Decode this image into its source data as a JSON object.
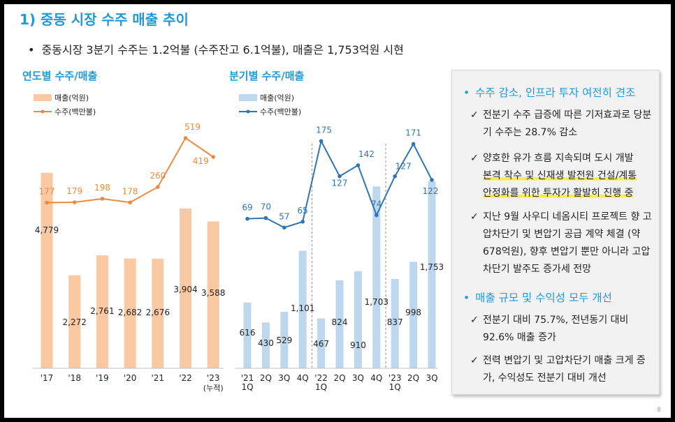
{
  "header": {
    "title": "1) 중동 시장 수주 매출 추이",
    "bullet": "중동시장 3분기 수주는 1.2억불 (수주잔고 6.1억불), 매출은 1,753억원 시현"
  },
  "chart_data": [
    {
      "type": "bar",
      "title": "연도별 수주/매출",
      "categories": [
        "'17",
        "'18",
        "'19",
        "'20",
        "'21",
        "'22",
        "'23"
      ],
      "category_sublabels": [
        "",
        "",
        "",
        "",
        "",
        "",
        "(누적)"
      ],
      "series": [
        {
          "name": "매출(억원)",
          "type": "bar",
          "color": "#f9c9a4",
          "values": [
            4779,
            2272,
            2761,
            2682,
            2676,
            3904,
            3588
          ]
        },
        {
          "name": "수주(백만불)",
          "type": "line",
          "color": "#ee8a3b",
          "values": [
            177,
            179,
            198,
            178,
            260,
            519,
            419
          ]
        }
      ],
      "value_labels": {
        "bar": [
          "4,779",
          "2,272",
          "2,761",
          "2,682",
          "2,676",
          "3,904",
          "3,588"
        ],
        "line": [
          "177",
          "179",
          "198",
          "178",
          "260",
          "519",
          "419"
        ]
      },
      "bar_ylim": [
        0,
        6000
      ],
      "line_ylim": [
        -700,
        600
      ]
    },
    {
      "type": "bar",
      "title": "분기별 수주/매출",
      "categories": [
        "'21 1Q",
        "2Q",
        "3Q",
        "4Q",
        "'22 1Q",
        "2Q",
        "3Q",
        "4Q",
        "'23 1Q",
        "2Q",
        "3Q"
      ],
      "series": [
        {
          "name": "매출(억원)",
          "type": "bar",
          "color": "#bdd7ee",
          "values": [
            616,
            430,
            529,
            1101,
            467,
            824,
            910,
            1703,
            837,
            998,
            1753
          ]
        },
        {
          "name": "수주(백만불)",
          "type": "line",
          "color": "#2e75b6",
          "values": [
            69,
            70,
            57,
            65,
            175,
            127,
            142,
            74,
            127,
            171,
            122
          ]
        }
      ],
      "value_labels": {
        "bar": [
          "616",
          "430",
          "529",
          "1,101",
          "467",
          "824",
          "910",
          "1,703",
          "837",
          "998",
          "1,753"
        ],
        "line": [
          "69",
          "70",
          "57",
          "65",
          "175",
          "127",
          "142",
          "74",
          "127",
          "171",
          "122"
        ]
      },
      "bar_ylim": [
        0,
        2300
      ],
      "line_ylim": [
        -135,
        200
      ],
      "year_separators_after_index": [
        3,
        7
      ]
    }
  ],
  "panel": {
    "heading1": "수주 감소, 인프라 투자 여전히 견조",
    "item1": "전분기 수주 급증에 따른 기저효과로 당분기 수주는 28.7% 감소",
    "item2_line1": "양호한 유가 흐름 지속되며 도시 개발",
    "item2_line2": "본격 착수 및 신재생 발전원 건설/계통",
    "item2_line3": "안정화를 위한 투자가 활발히 진행 중",
    "item3": "지난 9월 사우디 네옴시티 프로젝트 향 고압차단기 및 변압기 공급 계약 체결 (약 678억원), 향후 변압기 뿐만 아니라 고압차단기 발주도 증가세 전망",
    "heading2": "매출 규모 및 수익성 모두 개선",
    "item4": "전분기 대비 75.7%, 전년동기 대비 92.6% 매출 증가",
    "item5": "전력 변압기 및 고압차단기 매출 크게 증가, 수익성도 전분기 대비 개선",
    "bullet_glyph": "•",
    "check_glyph": "✓"
  },
  "page_number": "8"
}
